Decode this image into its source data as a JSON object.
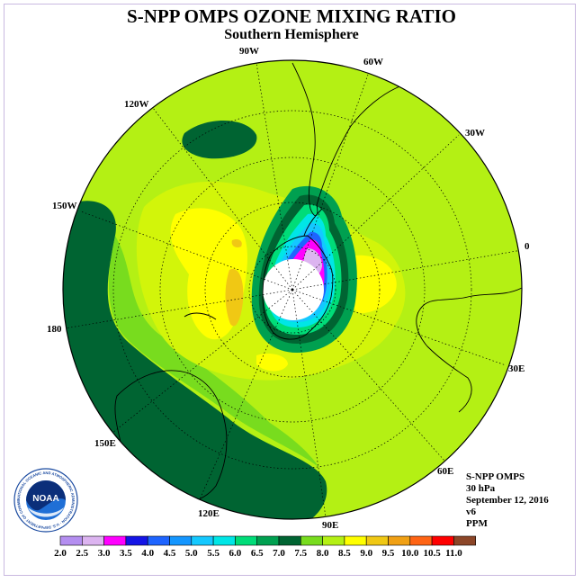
{
  "header": {
    "title": "S-NPP OMPS OZONE MIXING RATIO",
    "subtitle": "Southern Hemisphere"
  },
  "map": {
    "projection": "polar-stereographic-south",
    "longitude_labels": [
      "0",
      "30E",
      "60E",
      "90E",
      "120E",
      "150E",
      "180",
      "150W",
      "120W",
      "90W",
      "60W",
      "30W"
    ]
  },
  "info": {
    "instrument": "S-NPP OMPS",
    "level": "30 hPa",
    "date": "September 12, 2016",
    "version": "v6",
    "units": "PPM"
  },
  "logo": {
    "text": "NOAA",
    "ring_text": "NATIONAL OCEANIC AND ATMOSPHERIC ADMINISTRATION · U.S. DEPARTMENT OF COMMERCE"
  },
  "colorbar": {
    "tick_labels": [
      "2.0",
      "2.5",
      "3.0",
      "3.5",
      "4.0",
      "4.5",
      "5.0",
      "5.5",
      "6.0",
      "6.5",
      "7.0",
      "7.5",
      "8.0",
      "8.5",
      "9.0",
      "9.5",
      "10.0",
      "10.5",
      "11.0"
    ],
    "colors": [
      "#b48ef0",
      "#dcb4f0",
      "#ff00ff",
      "#1414e6",
      "#1e64ff",
      "#1496ff",
      "#14c8ff",
      "#00e6e6",
      "#00dc78",
      "#00a050",
      "#006432",
      "#78dc1e",
      "#b4f014",
      "#ffff00",
      "#f0c814",
      "#f0a014",
      "#ff6414",
      "#ff0000",
      "#8c4628"
    ]
  }
}
